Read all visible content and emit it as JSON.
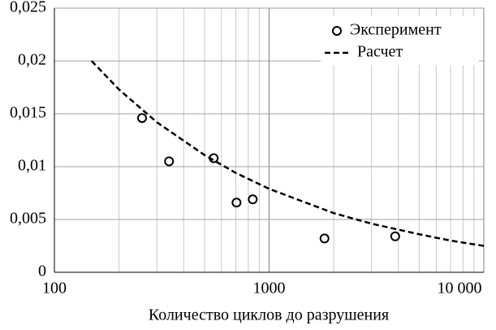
{
  "chart_data": {
    "type": "scatter",
    "xlabel": "Количество циклов до разрушения",
    "xscale": "log",
    "xlim": [
      100,
      10000
    ],
    "xticks": [
      100,
      1000,
      {
        "value": 10000,
        "label": "10 000"
      }
    ],
    "ylim": [
      0,
      0.025
    ],
    "yticks": [
      0,
      {
        "value": 0.005,
        "label": "0,005"
      },
      {
        "value": 0.01,
        "label": "0,01"
      },
      {
        "value": 0.015,
        "label": "0,015"
      },
      {
        "value": 0.02,
        "label": "0,02"
      },
      {
        "value": 0.025,
        "label": "0,025"
      }
    ],
    "grid": true,
    "legend": "upper right",
    "series": [
      {
        "name": "Эксперимент",
        "type": "scatter",
        "color": "#000000",
        "x": [
          256,
          342,
          552,
          705,
          839,
          1811,
          3866
        ],
        "values": [
          0.0146,
          0.0105,
          0.0108,
          0.0066,
          0.0069,
          0.0032,
          0.0034
        ]
      },
      {
        "name": "Расчет",
        "type": "line",
        "dashed": true,
        "color": "#000000",
        "x": [
          149,
          200,
          300,
          500,
          700,
          1000,
          2000,
          3000,
          5000,
          7000,
          10000
        ],
        "values": [
          0.02,
          0.0173,
          0.0142,
          0.0111,
          0.0094,
          0.0079,
          0.0056,
          0.0046,
          0.0036,
          0.003,
          0.0025
        ]
      }
    ]
  }
}
